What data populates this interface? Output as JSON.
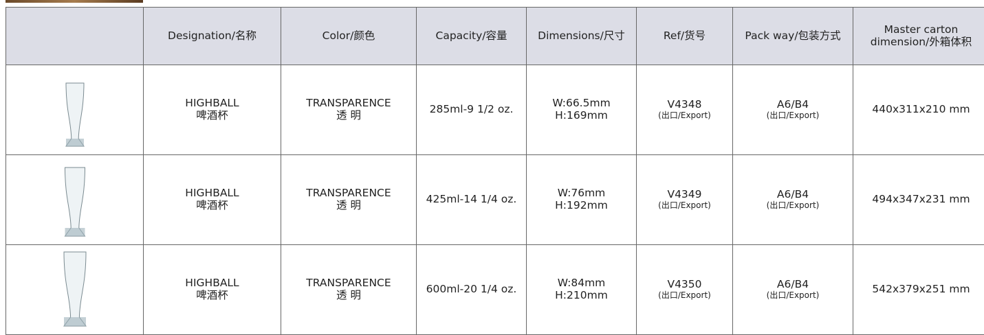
{
  "header": {
    "columns": [
      [
        "Designation/名称"
      ],
      [
        "Color/颜色"
      ],
      [
        "Capacity/容量"
      ],
      [
        "Dimensions/尺寸"
      ],
      [
        "Ref/货号"
      ],
      [
        "Pack way/包装方式"
      ],
      [
        "Master carton",
        "dimension/外箱体积"
      ]
    ]
  },
  "rows": [
    {
      "designation": [
        "HIGHBALL",
        "啤酒杯"
      ],
      "color": [
        "TRANSPARENCE",
        "透 明"
      ],
      "capacity": "285ml-9 1/2 oz.",
      "dimensions": [
        "W:66.5mm",
        "H:169mm"
      ],
      "ref": [
        "V4348",
        "(出口/Export)"
      ],
      "pack": [
        "A6/B4",
        "(出口/Export)"
      ],
      "master": "440x311x210 mm"
    },
    {
      "designation": [
        "HIGHBALL",
        "啤酒杯"
      ],
      "color": [
        "TRANSPARENCE",
        "透 明"
      ],
      "capacity": "425ml-14 1/4 oz.",
      "dimensions": [
        "W:76mm",
        "H:192mm"
      ],
      "ref": [
        "V4349",
        "(出口/Export)"
      ],
      "pack": [
        "A6/B4",
        "(出口/Export)"
      ],
      "master": "494x347x231 mm"
    },
    {
      "designation": [
        "HIGHBALL",
        "啤酒杯"
      ],
      "color": [
        "TRANSPARENCE",
        "透 明"
      ],
      "capacity": "600ml-20 1/4 oz.",
      "dimensions": [
        "W:84mm",
        "H:210mm"
      ],
      "ref": [
        "V4350",
        "(出口/Export)"
      ],
      "pack": [
        "A6/B4",
        "(出口/Export)"
      ],
      "master": "542x379x251 mm"
    }
  ]
}
